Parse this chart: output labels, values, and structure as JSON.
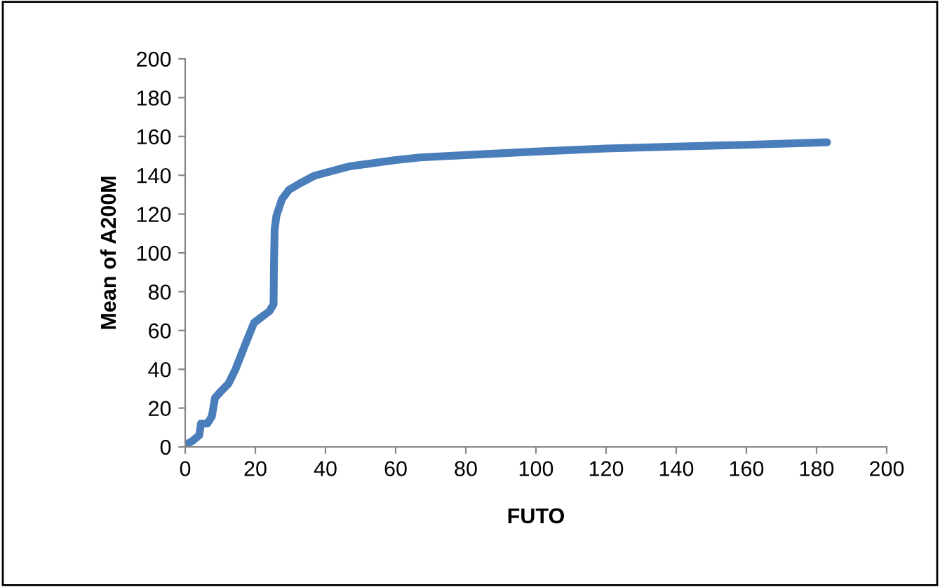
{
  "chart_data": {
    "type": "line",
    "xlabel": "FUTO",
    "ylabel": "Mean of A200M",
    "x": [
      0,
      2,
      4,
      4.5,
      6.3,
      7.6,
      8.5,
      10.3,
      12.3,
      14.3,
      16.9,
      19.6,
      21.6,
      24,
      25.2,
      25.3,
      25.5,
      26,
      27.6,
      29.6,
      32.9,
      36.9,
      46.9,
      60,
      67,
      80,
      100,
      120,
      140,
      160,
      183
    ],
    "series": [
      {
        "color": "#4a7ebb",
        "values": [
          1,
          3,
          6,
          12,
          12,
          15.7,
          25.3,
          28.9,
          32.5,
          39.8,
          51.8,
          63.9,
          66.7,
          69.9,
          73.5,
          92.8,
          112,
          119,
          127.7,
          132.5,
          136,
          139.8,
          144.6,
          147.8,
          149.2,
          150.4,
          152.2,
          153.8,
          154.8,
          155.7,
          157
        ]
      }
    ],
    "xlim": [
      0,
      200
    ],
    "xticks": [
      0,
      20,
      40,
      60,
      80,
      100,
      120,
      140,
      160,
      180,
      200
    ],
    "ylim": [
      0,
      200
    ],
    "yticks": [
      0,
      20,
      40,
      60,
      80,
      100,
      120,
      140,
      160,
      180,
      200
    ],
    "grid": false,
    "legend": false,
    "marker": "none",
    "line_style": "solid"
  }
}
